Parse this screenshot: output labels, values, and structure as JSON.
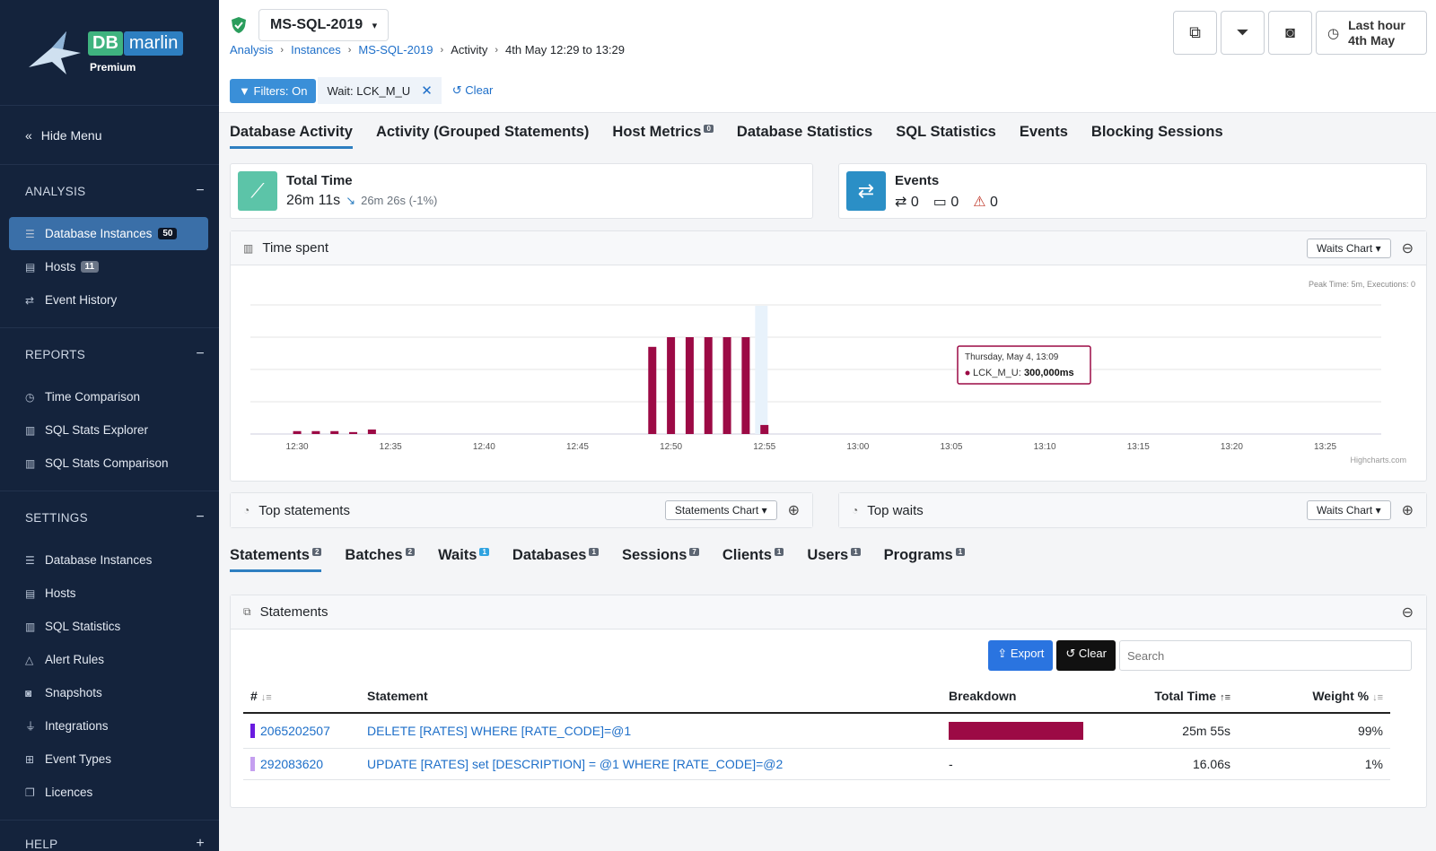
{
  "brand": {
    "db": "DB",
    "marlin": "marlin",
    "tier": "Premium"
  },
  "sidebar": {
    "hide_menu": "Hide Menu",
    "analysis": {
      "title": "ANALYSIS",
      "items": [
        {
          "label": "Database Instances",
          "badge": "50"
        },
        {
          "label": "Hosts",
          "badge": "11"
        },
        {
          "label": "Event History"
        }
      ]
    },
    "reports": {
      "title": "REPORTS",
      "items": [
        {
          "label": "Time Comparison"
        },
        {
          "label": "SQL Stats Explorer"
        },
        {
          "label": "SQL Stats Comparison"
        }
      ]
    },
    "settings": {
      "title": "SETTINGS",
      "items": [
        {
          "label": "Database Instances"
        },
        {
          "label": "Hosts"
        },
        {
          "label": "SQL Statistics"
        },
        {
          "label": "Alert Rules"
        },
        {
          "label": "Snapshots"
        },
        {
          "label": "Integrations"
        },
        {
          "label": "Event Types"
        },
        {
          "label": "Licences"
        }
      ]
    },
    "help": {
      "title": "HELP"
    }
  },
  "header": {
    "instance": "MS-SQL-2019",
    "breadcrumb": [
      "Analysis",
      "Instances",
      "MS-SQL-2019",
      "Activity",
      "4th May 12:29 to 13:29"
    ],
    "filters_on": "Filters: On",
    "filter_chip": "Wait: LCK_M_U",
    "clear": "Clear",
    "range_line1": "Last hour",
    "range_line2": "4th May"
  },
  "tabs": [
    {
      "label": "Database Activity"
    },
    {
      "label": "Activity (Grouped Statements)"
    },
    {
      "label": "Host Metrics",
      "badge": "0"
    },
    {
      "label": "Database Statistics"
    },
    {
      "label": "SQL Statistics"
    },
    {
      "label": "Events"
    },
    {
      "label": "Blocking Sessions"
    }
  ],
  "kpi": {
    "total_time": {
      "title": "Total Time",
      "value": "26m 11s",
      "prev": "26m 26s (-1%)"
    },
    "events": {
      "title": "Events",
      "changes": "0",
      "schedules": "0",
      "alerts": "0"
    }
  },
  "time_panel": {
    "title": "Time spent",
    "chart_button": "Waits Chart ▾",
    "peak": "Peak Time: 5m, Executions: 0",
    "tooltip_title": "Thursday, May 4, 13:09",
    "tooltip_series": "LCK_M_U:",
    "tooltip_value": "300,000ms",
    "credit": "Highcharts.com"
  },
  "chart_data": {
    "type": "bar",
    "title": "",
    "xlabel": "",
    "ylabel": "",
    "ylim": [
      0,
      300000
    ],
    "x_ticks": [
      "12:30",
      "12:35",
      "12:40",
      "12:45",
      "12:50",
      "12:55",
      "13:00",
      "13:05",
      "13:10",
      "13:15",
      "13:20",
      "13:25"
    ],
    "x_range_minutes": [
      12.5,
      73
    ],
    "series": [
      {
        "name": "LCK_M_U",
        "color": "#9c0a45",
        "x": [
          15,
          16,
          17,
          18,
          19,
          34,
          35,
          36,
          37,
          38,
          39,
          40
        ],
        "values": [
          9000,
          9000,
          9000,
          6000,
          14000,
          270000,
          300000,
          300000,
          300000,
          300000,
          300000,
          28000
        ]
      }
    ]
  },
  "bottom_panels": {
    "top_statements": {
      "title": "Top statements",
      "button": "Statements Chart ▾"
    },
    "top_waits": {
      "title": "Top waits",
      "button": "Waits Chart ▾"
    }
  },
  "subtabs": [
    {
      "label": "Statements",
      "badge": "2"
    },
    {
      "label": "Batches",
      "badge": "2"
    },
    {
      "label": "Waits",
      "badge": "1"
    },
    {
      "label": "Databases",
      "badge": "1"
    },
    {
      "label": "Sessions",
      "badge": "7"
    },
    {
      "label": "Clients",
      "badge": "1"
    },
    {
      "label": "Users",
      "badge": "1"
    },
    {
      "label": "Programs",
      "badge": "1"
    }
  ],
  "statements": {
    "title": "Statements",
    "export": "Export",
    "clear": "Clear",
    "search_placeholder": "Search",
    "columns": [
      "#",
      "Statement",
      "Breakdown",
      "Total Time",
      "Weight %"
    ],
    "rows": [
      {
        "id": "2065202507",
        "color": "#6a1be0",
        "statement": "DELETE [RATES] WHERE [RATE_CODE]=@1",
        "breakdown": 1.0,
        "breakdown_text": "",
        "total_time": "25m 55s",
        "weight": "99%"
      },
      {
        "id": "292083620",
        "color": "#c59ff0",
        "statement": "UPDATE [RATES] set [DESCRIPTION] = @1 WHERE [RATE_CODE]=@2",
        "breakdown": 0,
        "breakdown_text": "-",
        "total_time": "16.06s",
        "weight": "1%"
      }
    ]
  },
  "colors": {
    "accent": "#2e7fc1",
    "bar": "#9c0a45",
    "sidebar": "#14233c"
  }
}
